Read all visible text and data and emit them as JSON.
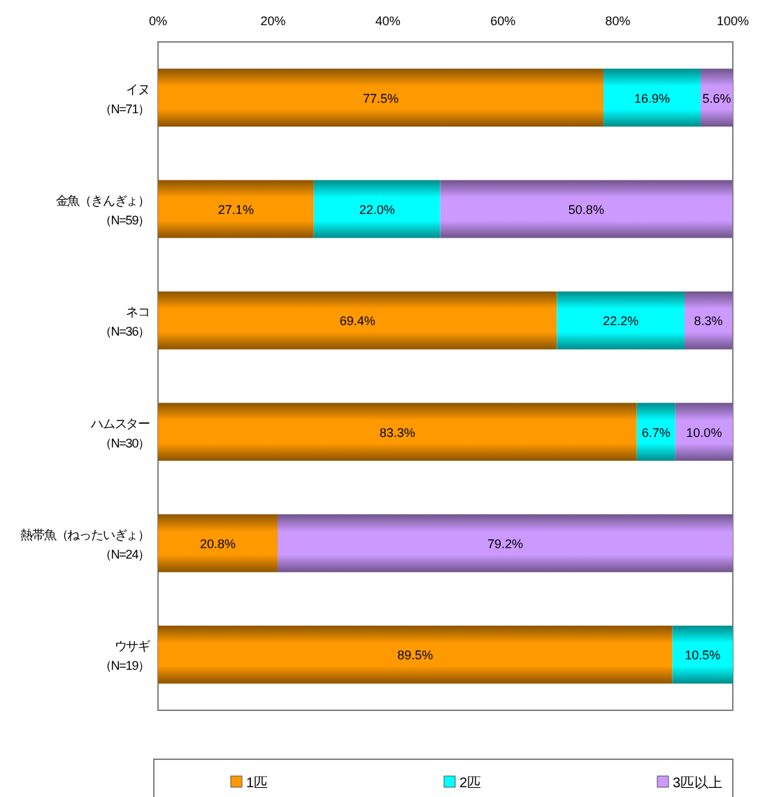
{
  "chart_data": {
    "type": "bar",
    "orientation": "horizontal",
    "stacked": true,
    "categories": [
      "イヌ（N=71）",
      "金魚（きんぎょ）（N=59）",
      "ネコ（N=36）",
      "ハムスター（N=30）",
      "熱帯魚（ねったいぎょ）（N=24）",
      "ウサギ（N=19）"
    ],
    "series": [
      {
        "name": "1匹",
        "color": "#ff9900",
        "values": [
          77.5,
          27.1,
          69.4,
          83.3,
          20.8,
          89.5
        ],
        "value_labels": [
          "77.5%",
          "27.1%",
          "69.4%",
          "83.3%",
          "20.8%",
          "89.5%"
        ]
      },
      {
        "name": "2匹",
        "color": "#00ffff",
        "values": [
          16.9,
          22.0,
          22.2,
          6.7,
          null,
          10.5
        ],
        "value_labels": [
          "16.9%",
          "22.0%",
          "22.2%",
          "6.7%",
          null,
          "10.5%"
        ]
      },
      {
        "name": "3匹以上",
        "color": "#cc99ff",
        "values": [
          5.6,
          50.8,
          8.3,
          10.0,
          79.2,
          null
        ],
        "value_labels": [
          "5.6%",
          "50.8%",
          "8.3%",
          "10.0%",
          "79.2%",
          null
        ]
      }
    ],
    "xlim": [
      0,
      100
    ],
    "xticks": [
      {
        "value": 0,
        "label": "0%"
      },
      {
        "value": 20,
        "label": "20%"
      },
      {
        "value": 40,
        "label": "40%"
      },
      {
        "value": 60,
        "label": "60%"
      },
      {
        "value": 80,
        "label": "80%"
      },
      {
        "value": 100,
        "label": "100%"
      }
    ],
    "grid": false,
    "legend": "bottom"
  }
}
